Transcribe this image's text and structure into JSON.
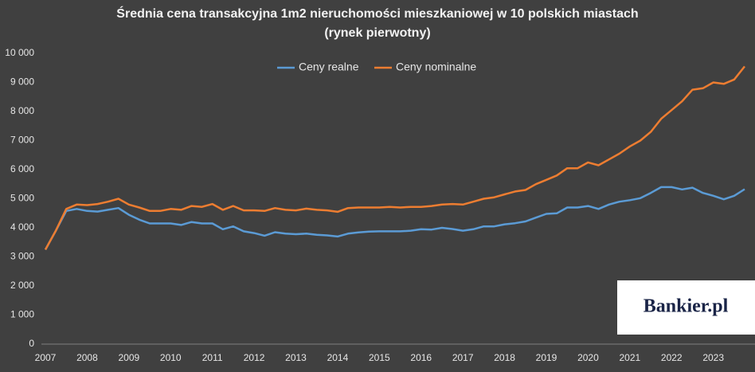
{
  "chart_data": {
    "type": "line",
    "title": "Średnia cena transakcyjna  1m2 nieruchomości mieszkaniowej w 10 polskich miastach",
    "subtitle": "(rynek pierwotny)",
    "logo": "Bankier.pl",
    "categories": [
      "2007",
      null,
      null,
      null,
      "2008",
      null,
      null,
      null,
      "2009",
      null,
      null,
      null,
      "2010",
      null,
      null,
      null,
      "2011",
      null,
      null,
      null,
      "2012",
      null,
      null,
      null,
      "2013",
      null,
      null,
      null,
      "2014",
      null,
      null,
      null,
      "2015",
      null,
      null,
      null,
      "2016",
      null,
      null,
      null,
      "2017",
      null,
      null,
      null,
      "2018",
      null,
      null,
      null,
      "2019",
      null,
      null,
      null,
      "2020",
      null,
      null,
      null,
      "2021",
      null,
      null,
      null,
      "2022",
      null,
      null,
      null,
      "2023",
      null,
      null,
      null
    ],
    "series": [
      {
        "name": "Ceny realne",
        "color": "#5b9bd5",
        "values": [
          3250,
          3900,
          4580,
          4650,
          4580,
          4560,
          4620,
          4680,
          4450,
          4280,
          4150,
          4150,
          4150,
          4100,
          4200,
          4150,
          4150,
          3950,
          4050,
          3880,
          3820,
          3730,
          3850,
          3800,
          3780,
          3800,
          3760,
          3740,
          3700,
          3800,
          3840,
          3870,
          3880,
          3880,
          3880,
          3900,
          3950,
          3940,
          4000,
          3960,
          3900,
          3950,
          4050,
          4050,
          4120,
          4160,
          4220,
          4350,
          4480,
          4500,
          4700,
          4700,
          4750,
          4650,
          4800,
          4900,
          4950,
          5020,
          5200,
          5400,
          5400,
          5320,
          5380,
          5200,
          5100,
          4980,
          5100,
          5330
        ]
      },
      {
        "name": "Ceny nominalne",
        "color": "#ed7d31",
        "values": [
          3250,
          3900,
          4650,
          4800,
          4780,
          4820,
          4900,
          5000,
          4800,
          4700,
          4580,
          4580,
          4650,
          4620,
          4750,
          4720,
          4820,
          4620,
          4750,
          4600,
          4600,
          4580,
          4680,
          4620,
          4600,
          4660,
          4620,
          4600,
          4550,
          4680,
          4700,
          4700,
          4700,
          4720,
          4700,
          4720,
          4720,
          4750,
          4800,
          4820,
          4800,
          4900,
          5000,
          5050,
          5150,
          5250,
          5300,
          5500,
          5650,
          5800,
          6050,
          6050,
          6250,
          6150,
          6350,
          6550,
          6800,
          7000,
          7300,
          7750,
          8050,
          8350,
          8750,
          8800,
          9000,
          8950,
          9100,
          9550
        ]
      }
    ],
    "ylim": [
      0,
      10000
    ],
    "yticks": [
      0,
      {
        "value": 1000,
        "label": "1 000"
      },
      {
        "value": 2000,
        "label": "2 000"
      },
      {
        "value": 3000,
        "label": "3 000"
      },
      {
        "value": 4000,
        "label": "4 000"
      },
      {
        "value": 5000,
        "label": "5 000"
      },
      {
        "value": 6000,
        "label": "6 000"
      },
      {
        "value": 7000,
        "label": "7 000"
      },
      {
        "value": 8000,
        "label": "8 000"
      },
      {
        "value": 9000,
        "label": "9 000"
      },
      {
        "value": 10000,
        "label": "10 000"
      }
    ],
    "grid": false,
    "legend": "top"
  }
}
